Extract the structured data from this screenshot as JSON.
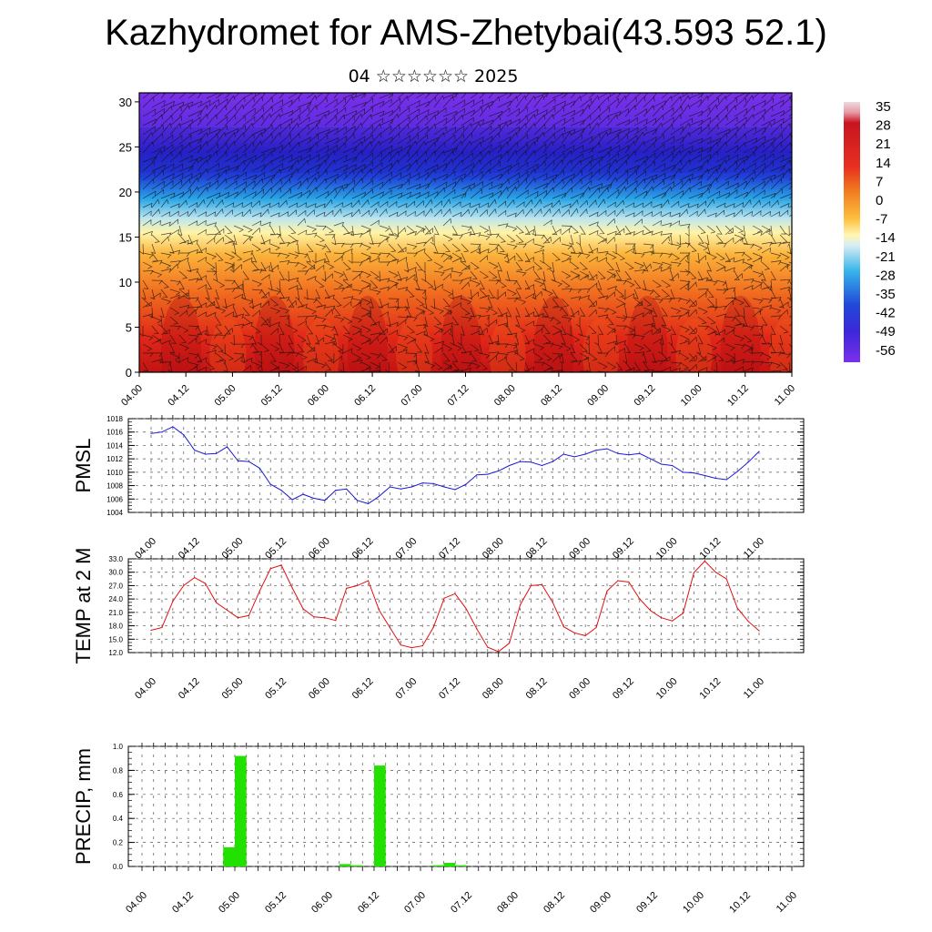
{
  "title": "Kazhydromet for AMS-Zhetybai(43.593 52.1)",
  "subtitle": "04 ☆☆☆☆☆☆ 2025",
  "colorbar": {
    "labels": [
      "35",
      "28",
      "21",
      "14",
      "7",
      "0",
      "-7",
      "-14",
      "-21",
      "-28",
      "-35",
      "-42",
      "-49",
      "-56"
    ],
    "colors": [
      "#e9d6dc",
      "#d8202a",
      "#f06a1e",
      "#fdb432",
      "#fff3a0",
      "#bfe6f0",
      "#28a8e8",
      "#2050d8",
      "#7a2fe8"
    ]
  },
  "chart_data": [
    {
      "type": "heatmap",
      "name": "cross-section",
      "x_tick_labels": [
        "04.00",
        "04.12",
        "05.00",
        "05.12",
        "06.00",
        "06.12",
        "07.00",
        "07.12",
        "08.00",
        "08.12",
        "09.00",
        "09.12",
        "10.00",
        "10.12",
        "11.00"
      ],
      "y_tick_labels": [
        "0",
        "5",
        "10",
        "15",
        "20",
        "25",
        "30"
      ],
      "ylim": [
        0,
        31
      ],
      "value_range": [
        -56,
        35
      ]
    },
    {
      "type": "line",
      "name": "pmsl",
      "ylabel": "PMSL",
      "ylim": [
        1004,
        1018
      ],
      "y_tick_labels": [
        "1004",
        "1006",
        "1008",
        "1010",
        "1012",
        "1014",
        "1016",
        "1018"
      ],
      "x_tick_labels": [
        "04.00",
        "04.12",
        "05.00",
        "05.12",
        "06.00",
        "06.12",
        "07.00",
        "07.12",
        "08.00",
        "08.12",
        "09.00",
        "09.12",
        "10.00",
        "10.12",
        "11.00"
      ],
      "color": "#1a1ad8",
      "values": [
        1015.8,
        1016,
        1016.8,
        1015.6,
        1013.3,
        1012.7,
        1012.8,
        1013.8,
        1011.7,
        1011.6,
        1010.6,
        1008.2,
        1007.3,
        1005.9,
        1006.7,
        1006.1,
        1005.8,
        1007.3,
        1007.5,
        1005.8,
        1005.3,
        1006.4,
        1007.8,
        1007.5,
        1007.8,
        1008.4,
        1008.3,
        1007.8,
        1007.4,
        1008.2,
        1009.6,
        1009.7,
        1010.2,
        1011,
        1011.6,
        1011.5,
        1011,
        1011.6,
        1012.7,
        1012.3,
        1012.7,
        1013.3,
        1013.5,
        1012.8,
        1012.6,
        1012.8,
        1012,
        1011.2,
        1011,
        1010,
        1009.9,
        1009.5,
        1009.1,
        1008.9,
        1010.1,
        1011.5,
        1013.1
      ]
    },
    {
      "type": "line",
      "name": "temp2m",
      "ylabel": "TEMP at 2 M",
      "ylim": [
        12,
        33
      ],
      "y_tick_labels": [
        "12.0",
        "15.0",
        "18.0",
        "21.0",
        "24.0",
        "27.0",
        "30.0",
        "33.0"
      ],
      "x_tick_labels": [
        "04.00",
        "04.12",
        "05.00",
        "05.12",
        "06.00",
        "06.12",
        "07.00",
        "07.12",
        "08.00",
        "08.12",
        "09.00",
        "09.12",
        "10.00",
        "10.12",
        "11.00"
      ],
      "color": "#e01010",
      "values": [
        17,
        17.6,
        23.5,
        27,
        28.8,
        27.5,
        23.2,
        21.5,
        19.8,
        20.3,
        25.8,
        30.8,
        31.6,
        26.5,
        21.8,
        20,
        19.8,
        19.2,
        26.4,
        27,
        28.1,
        21.5,
        17.6,
        13.7,
        13.1,
        13.5,
        17.6,
        24.2,
        25.2,
        21.9,
        17.3,
        13.2,
        12.2,
        14.1,
        22.7,
        27,
        27.2,
        23.2,
        17.8,
        16.4,
        15.8,
        17.6,
        25.8,
        28.1,
        27.8,
        24,
        21.4,
        19.8,
        19.1,
        20.8,
        29.9,
        32.5,
        30,
        28.5,
        22,
        19,
        16.9
      ]
    },
    {
      "type": "bar",
      "name": "precip",
      "ylabel": "PRECIP, mm",
      "ylim": [
        0,
        1
      ],
      "y_tick_labels": [
        "0.0",
        "0.2",
        "0.4",
        "0.6",
        "0.8",
        "1.0"
      ],
      "x_tick_labels": [
        "04.00",
        "04.12",
        "05.00",
        "05.12",
        "06.00",
        "06.12",
        "07.00",
        "07.12",
        "08.00",
        "08.12",
        "09.00",
        "09.12",
        "10.00",
        "10.12",
        "11.00"
      ],
      "color": "#22e000",
      "values": [
        0,
        0,
        0,
        0,
        0,
        0,
        0,
        0.16,
        0.92,
        0,
        0,
        0,
        0,
        0,
        0,
        0,
        0,
        0.02,
        0.01,
        0,
        0.84,
        0,
        0,
        0,
        0,
        0.01,
        0.03,
        0.01,
        0,
        0,
        0,
        0,
        0,
        0,
        0,
        0,
        0,
        0,
        0,
        0,
        0,
        0,
        0,
        0,
        0,
        0,
        0,
        0,
        0,
        0,
        0,
        0,
        0,
        0,
        0,
        0,
        0
      ]
    }
  ]
}
